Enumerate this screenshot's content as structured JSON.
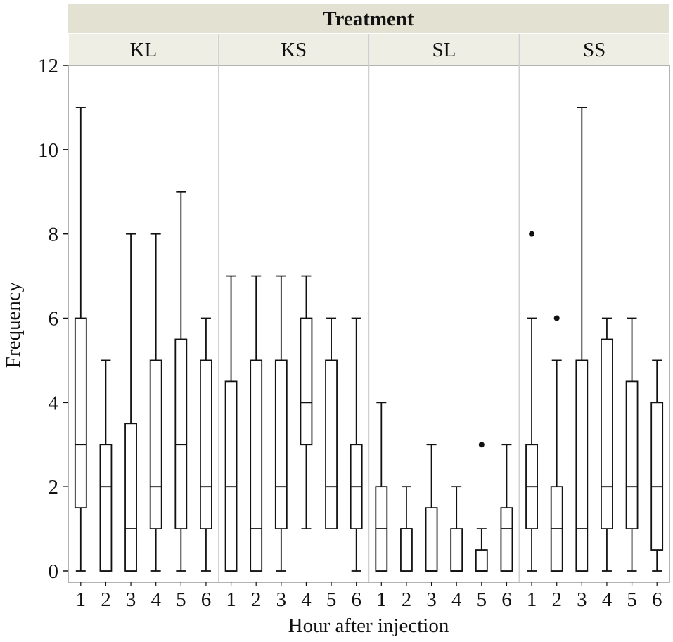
{
  "chart_data": {
    "type": "boxplot",
    "facet_title": "Treatment",
    "xlabel": "Hour after injection",
    "ylabel": "Frequency",
    "ylim": [
      0,
      12
    ],
    "y_ticks": [
      "0",
      "2",
      "4",
      "6",
      "8",
      "10",
      "12"
    ],
    "x_ticks": [
      "1",
      "2",
      "3",
      "4",
      "5",
      "6"
    ],
    "panels": [
      {
        "name": "KL",
        "boxes": [
          {
            "hour": 1,
            "min": 0,
            "q1": 1.5,
            "median": 3,
            "q3": 6,
            "max": 11,
            "outliers": []
          },
          {
            "hour": 2,
            "min": 0,
            "q1": 0,
            "median": 2,
            "q3": 3,
            "max": 5,
            "outliers": []
          },
          {
            "hour": 3,
            "min": 0,
            "q1": 0,
            "median": 1,
            "q3": 3.5,
            "max": 8,
            "outliers": []
          },
          {
            "hour": 4,
            "min": 0,
            "q1": 1,
            "median": 2,
            "q3": 5,
            "max": 8,
            "outliers": []
          },
          {
            "hour": 5,
            "min": 0,
            "q1": 1,
            "median": 3,
            "q3": 5.5,
            "max": 9,
            "outliers": []
          },
          {
            "hour": 6,
            "min": 0,
            "q1": 1,
            "median": 2,
            "q3": 5,
            "max": 6,
            "outliers": []
          }
        ]
      },
      {
        "name": "KS",
        "boxes": [
          {
            "hour": 1,
            "min": 0,
            "q1": 0,
            "median": 2,
            "q3": 4.5,
            "max": 7,
            "outliers": []
          },
          {
            "hour": 2,
            "min": 0,
            "q1": 0,
            "median": 1,
            "q3": 5,
            "max": 7,
            "outliers": []
          },
          {
            "hour": 3,
            "min": 0,
            "q1": 1,
            "median": 2,
            "q3": 5,
            "max": 7,
            "outliers": []
          },
          {
            "hour": 4,
            "min": 1,
            "q1": 3,
            "median": 4,
            "q3": 6,
            "max": 7,
            "outliers": []
          },
          {
            "hour": 5,
            "min": 1,
            "q1": 1,
            "median": 2,
            "q3": 5,
            "max": 6,
            "outliers": []
          },
          {
            "hour": 6,
            "min": 0,
            "q1": 1,
            "median": 2,
            "q3": 3,
            "max": 6,
            "outliers": []
          }
        ]
      },
      {
        "name": "SL",
        "boxes": [
          {
            "hour": 1,
            "min": 0,
            "q1": 0,
            "median": 1,
            "q3": 2,
            "max": 4,
            "outliers": []
          },
          {
            "hour": 2,
            "min": 0,
            "q1": 0,
            "median": 1,
            "q3": 1,
            "max": 2,
            "outliers": []
          },
          {
            "hour": 3,
            "min": 0,
            "q1": 0,
            "median": 0,
            "q3": 1.5,
            "max": 3,
            "outliers": []
          },
          {
            "hour": 4,
            "min": 0,
            "q1": 0,
            "median": 0,
            "q3": 1,
            "max": 2,
            "outliers": []
          },
          {
            "hour": 5,
            "min": 0,
            "q1": 0,
            "median": 0,
            "q3": 0.5,
            "max": 1,
            "outliers": [
              3
            ]
          },
          {
            "hour": 6,
            "min": 0,
            "q1": 0,
            "median": 1,
            "q3": 1.5,
            "max": 3,
            "outliers": []
          }
        ]
      },
      {
        "name": "SS",
        "boxes": [
          {
            "hour": 1,
            "min": 0,
            "q1": 1,
            "median": 2,
            "q3": 3,
            "max": 6,
            "outliers": [
              8
            ]
          },
          {
            "hour": 2,
            "min": 0,
            "q1": 0,
            "median": 1,
            "q3": 2,
            "max": 5,
            "outliers": [
              6
            ]
          },
          {
            "hour": 3,
            "min": 0,
            "q1": 0,
            "median": 1,
            "q3": 5,
            "max": 11,
            "outliers": []
          },
          {
            "hour": 4,
            "min": 0,
            "q1": 1,
            "median": 2,
            "q3": 5.5,
            "max": 6,
            "outliers": []
          },
          {
            "hour": 5,
            "min": 0,
            "q1": 1,
            "median": 2,
            "q3": 4.5,
            "max": 6,
            "outliers": []
          },
          {
            "hour": 6,
            "min": 0,
            "q1": 0.5,
            "median": 2,
            "q3": 4,
            "max": 5,
            "outliers": []
          }
        ]
      }
    ],
    "colors": {
      "header_fill": "#e3e1d1",
      "subheader_fill": "#efeee5",
      "frame": "#999999",
      "divider": "#d0d0d0",
      "ink": "#111111"
    }
  }
}
